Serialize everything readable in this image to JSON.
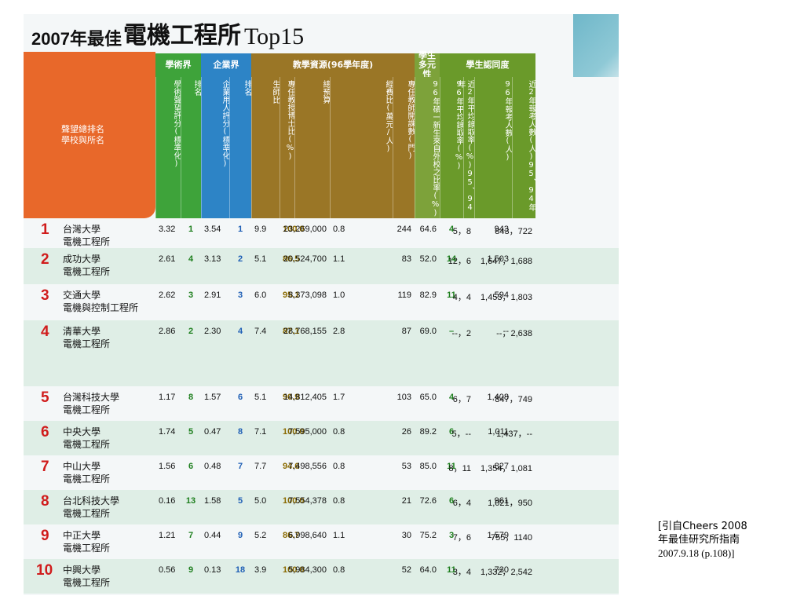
{
  "title": {
    "year": "2007年最佳",
    "name": "電機工程所",
    "top": "Top15"
  },
  "header": {
    "rank_label": [
      "聲望總排名",
      "學校與所名"
    ],
    "groups": [
      "學術界",
      "企業界",
      "教學資源(96學年度)",
      "學生多元性",
      "學生認同度"
    ],
    "columns": [
      "學術聲望評分(標準化)",
      "排名",
      "企業用人評分(標準化)",
      "排名",
      "生師比",
      "專任教授博士比(%)",
      "總預算",
      "經費比(萬元/人)",
      "專任教師開課數(門)",
      "96年碩一新生來自外校之比率(%)",
      "96年平均錄取率(%)",
      "近2年平均錄取率(%)95、94年",
      "96年報考人數(人)",
      "近2年報考人數(人)95、94年"
    ]
  },
  "rows": [
    {
      "rank": "1",
      "school": [
        "台灣大學",
        "電機工程所"
      ],
      "values": [
        "3.32",
        "1",
        "3.54",
        "1",
        "9.9",
        "100.0",
        "23,269,000",
        "0.8",
        "244",
        "64.6",
        "4",
        "5，8",
        "943",
        "843，722"
      ]
    },
    {
      "rank": "2",
      "school": [
        "成功大學",
        "電機工程所"
      ],
      "values": [
        "2.61",
        "4",
        "3.13",
        "2",
        "5.1",
        "86.5",
        "20,524,700",
        "1.1",
        "83",
        "52.0",
        "14",
        "12，6",
        "1,503",
        "1,647，1,688"
      ]
    },
    {
      "rank": "3",
      "school": [
        "交通大學",
        "電機與控制工程所"
      ],
      "values": [
        "2.62",
        "3",
        "2.91",
        "3",
        "6.0",
        "95.1",
        "8,373,098",
        "1.0",
        "119",
        "82.9",
        "11",
        "4，4",
        "594",
        "1,453，1,803"
      ]
    },
    {
      "rank": "4",
      "school": [
        "清華大學",
        "電機工程所"
      ],
      "values": [
        "2.86",
        "2",
        "2.30",
        "4",
        "7.4",
        "87.1",
        "28,768,155",
        "2.8",
        "87",
        "69.0",
        "–",
        "--，2",
        "--",
        "--，2,638"
      ]
    },
    {
      "rank": "5",
      "school": [
        "台灣科技大學",
        "電機工程所"
      ],
      "values": [
        "1.17",
        "8",
        "1.57",
        "6",
        "5.1",
        "90.9",
        "14,812,405",
        "1.7",
        "103",
        "65.0",
        "4",
        "6，7",
        "1,408",
        "847，749"
      ]
    },
    {
      "rank": "6",
      "school": [
        "中央大學",
        "電機工程所"
      ],
      "values": [
        "1.74",
        "5",
        "0.47",
        "8",
        "7.1",
        "100.0",
        "7,595,000",
        "0.8",
        "26",
        "89.2",
        "6",
        "5，--",
        "1,011",
        "1,437，--"
      ]
    },
    {
      "rank": "7",
      "school": [
        "中山大學",
        "電機工程所"
      ],
      "values": [
        "1.56",
        "6",
        "0.48",
        "7",
        "7.7",
        "94.6",
        "7,498,556",
        "0.8",
        "53",
        "85.0",
        "11",
        "8，11",
        "827",
        "1,354，1,081"
      ]
    },
    {
      "rank": "8",
      "school": [
        "台北科技大學",
        "電機工程所"
      ],
      "values": [
        "0.16",
        "13",
        "1.58",
        "5",
        "5.0",
        "100.0",
        "7,554,378",
        "0.8",
        "21",
        "72.6",
        "6",
        "6，4",
        "961",
        "1,021，950"
      ]
    },
    {
      "rank": "9",
      "school": [
        "中正大學",
        "電機工程所"
      ],
      "values": [
        "1.21",
        "7",
        "0.44",
        "9",
        "5.2",
        "86.7",
        "6,998,640",
        "1.1",
        "30",
        "75.2",
        "3",
        "7，6",
        "1,579",
        "755，1140"
      ]
    },
    {
      "rank": "10",
      "school": [
        "中興大學",
        "電機工程所"
      ],
      "values": [
        "0.56",
        "9",
        "0.13",
        "18",
        "3.9",
        "100.0",
        "5,984,300",
        "0.8",
        "52",
        "64.0",
        "11",
        "3，4",
        "730",
        "1,332，2,542"
      ]
    }
  ],
  "citation": [
    "[引自Cheers 2008",
    "年最佳研究所指南",
    "2007.9.18 (p.108)]"
  ],
  "colors": {
    "rank_header": "#e8682a",
    "academia": "#3ea33a",
    "industry": "#2d84c6",
    "resources": "#9a7626",
    "diversity": "#7da23a",
    "recognition": "#6a9a2a",
    "rank_number": "#d01c1c",
    "academia_rank": "#1e7f1e",
    "industry_rank": "#1f5fb5",
    "phd_ratio": "#8a6a00",
    "row_alt": "#dfeee6"
  }
}
